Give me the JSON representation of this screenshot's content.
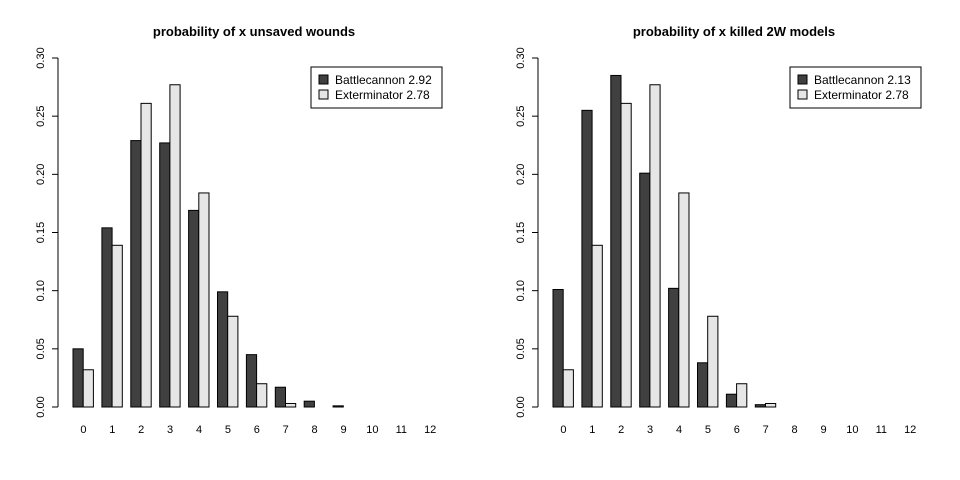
{
  "chart_data": [
    {
      "type": "bar",
      "title": "probability of x unsaved wounds",
      "xlabel": "",
      "ylabel": "",
      "categories": [
        "0",
        "1",
        "2",
        "3",
        "4",
        "5",
        "6",
        "7",
        "8",
        "9",
        "10",
        "11",
        "12"
      ],
      "ylim": [
        0,
        0.3
      ],
      "yticks": [
        "0.00",
        "0.05",
        "0.10",
        "0.15",
        "0.20",
        "0.25",
        "0.30"
      ],
      "legend_position": "top-right",
      "series": [
        {
          "name": "Battlecannon 2.92",
          "color": "#404040",
          "values": [
            0.05,
            0.154,
            0.229,
            0.227,
            0.169,
            0.099,
            0.045,
            0.017,
            0.005,
            0.001,
            0.0,
            0.0,
            0.0
          ]
        },
        {
          "name": "Exterminator 2.78",
          "color": "#e6e6e6",
          "values": [
            0.032,
            0.139,
            0.261,
            0.277,
            0.184,
            0.078,
            0.02,
            0.003,
            0.0,
            0.0,
            0.0,
            0.0,
            0.0
          ]
        }
      ]
    },
    {
      "type": "bar",
      "title": "probability of x killed 2W models",
      "xlabel": "",
      "ylabel": "",
      "categories": [
        "0",
        "1",
        "2",
        "3",
        "4",
        "5",
        "6",
        "7",
        "8",
        "9",
        "10",
        "11",
        "12"
      ],
      "ylim": [
        0,
        0.3
      ],
      "yticks": [
        "0.00",
        "0.05",
        "0.10",
        "0.15",
        "0.20",
        "0.25",
        "0.30"
      ],
      "legend_position": "top-right",
      "series": [
        {
          "name": "Battlecannon 2.13",
          "color": "#404040",
          "values": [
            0.101,
            0.255,
            0.285,
            0.201,
            0.102,
            0.038,
            0.011,
            0.002,
            0.0,
            0.0,
            0.0,
            0.0,
            0.0
          ]
        },
        {
          "name": "Exterminator 2.78",
          "color": "#e6e6e6",
          "values": [
            0.032,
            0.139,
            0.261,
            0.277,
            0.184,
            0.078,
            0.02,
            0.003,
            0.0,
            0.0,
            0.0,
            0.0,
            0.0
          ]
        }
      ]
    }
  ]
}
